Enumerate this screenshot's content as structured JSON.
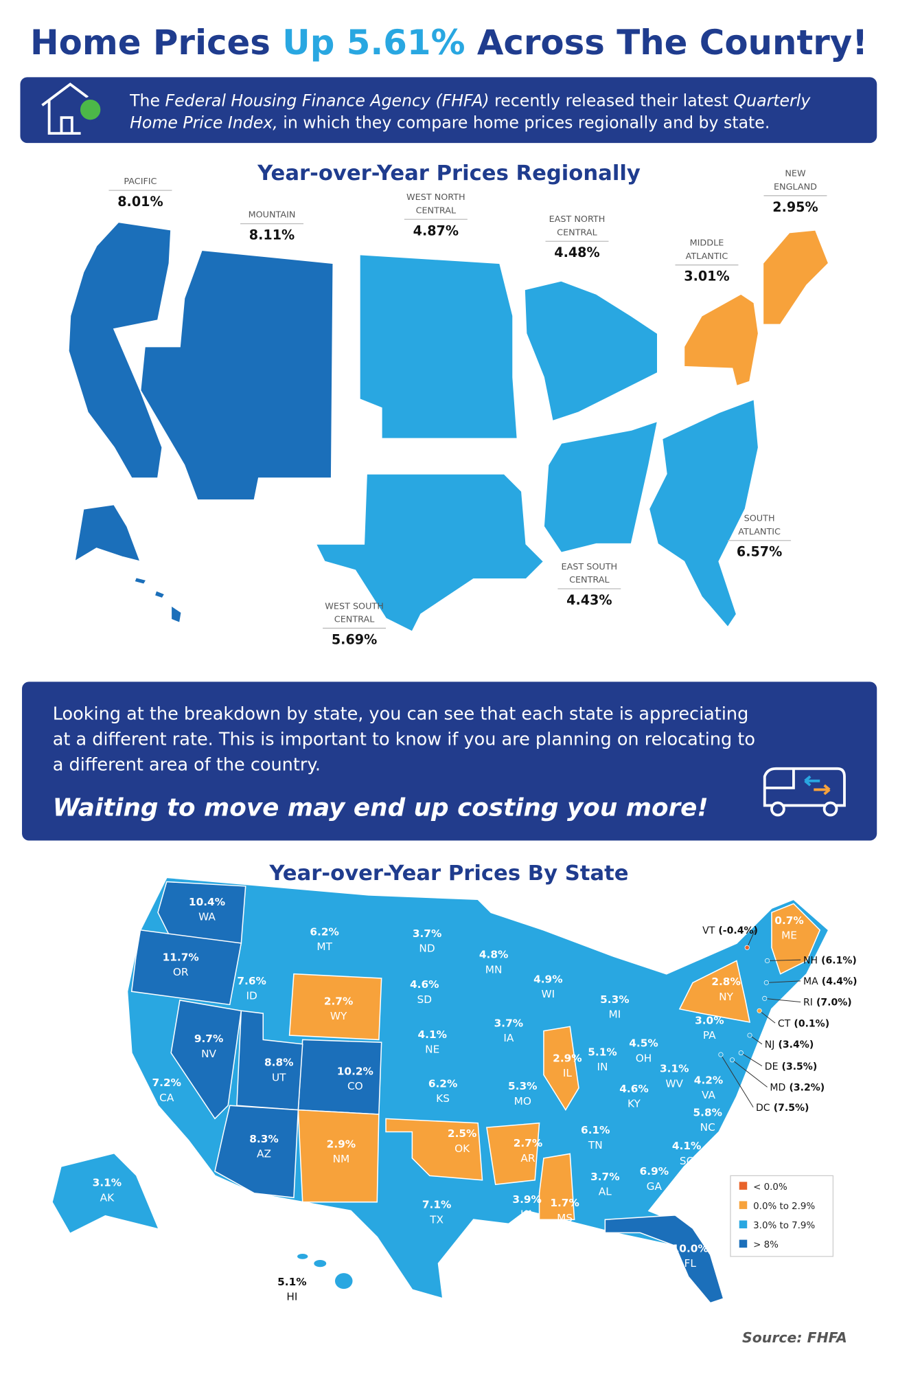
{
  "header": {
    "title": [
      {
        "text": "Home Prices "
      },
      {
        "text": "Up 5.61%",
        "color": "#29a7e1"
      },
      {
        "text": " Across The Country!"
      }
    ],
    "color": "#1f3c8e"
  },
  "intro": {
    "lines": [
      [
        {
          "text": "The "
        },
        {
          "text": "Federal Housing Finance Agency (FHFA)",
          "italic": true
        },
        {
          "text": " recently released their latest "
        },
        {
          "text": "Quarterly",
          "italic": true
        }
      ],
      [
        {
          "text": "Home Price Index,",
          "italic": true
        },
        {
          "text": " in which they compare home prices regionally and by state."
        }
      ]
    ]
  },
  "regional": {
    "title": "Year-over-Year Prices Regionally",
    "regions": [
      {
        "name": [
          "PACIFIC"
        ],
        "value": "8.01%",
        "color": "#1b6fba"
      },
      {
        "name": [
          "MOUNTAIN"
        ],
        "value": "8.11%",
        "color": "#1b6fba"
      },
      {
        "name": [
          "WEST NORTH",
          "CENTRAL"
        ],
        "value": "4.87%",
        "color": "#29a7e1"
      },
      {
        "name": [
          "EAST NORTH",
          "CENTRAL"
        ],
        "value": "4.48%",
        "color": "#29a7e1"
      },
      {
        "name": [
          "NEW",
          "ENGLAND"
        ],
        "value": "2.95%",
        "color": "#f7a23b"
      },
      {
        "name": [
          "MIDDLE",
          "ATLANTIC"
        ],
        "value": "3.01%",
        "color": "#f7a23b"
      },
      {
        "name": [
          "SOUTH",
          "ATLANTIC"
        ],
        "value": "6.57%",
        "color": "#29a7e1"
      },
      {
        "name": [
          "EAST SOUTH",
          "CENTRAL"
        ],
        "value": "4.43%",
        "color": "#29a7e1"
      },
      {
        "name": [
          "WEST SOUTH",
          "CENTRAL"
        ],
        "value": "5.69%",
        "color": "#29a7e1"
      }
    ]
  },
  "move": {
    "lines": [
      "Looking at the breakdown by state, you can see that each state is appreciating",
      "at a different rate. This is important to know if you are planning on relocating to",
      "a different area of the country."
    ],
    "tagline": "Waiting to move may end up costing you more!"
  },
  "states": {
    "title": "Year-over-Year Prices By State",
    "items": [
      {
        "abbr": "WA",
        "value": "10.4%",
        "color": "#1b6fba"
      },
      {
        "abbr": "OR",
        "value": "11.7%",
        "color": "#1b6fba"
      },
      {
        "abbr": "ID",
        "value": "7.6%",
        "color": "#29a7e1"
      },
      {
        "abbr": "MT",
        "value": "6.2%",
        "color": "#29a7e1"
      },
      {
        "abbr": "WY",
        "value": "2.7%",
        "color": "#f7a23b"
      },
      {
        "abbr": "ND",
        "value": "3.7%",
        "color": "#29a7e1"
      },
      {
        "abbr": "SD",
        "value": "4.6%",
        "color": "#29a7e1"
      },
      {
        "abbr": "NE",
        "value": "4.1%",
        "color": "#29a7e1"
      },
      {
        "abbr": "CO",
        "value": "10.2%",
        "color": "#1b6fba"
      },
      {
        "abbr": "UT",
        "value": "8.8%",
        "color": "#1b6fba"
      },
      {
        "abbr": "NV",
        "value": "9.7%",
        "color": "#1b6fba"
      },
      {
        "abbr": "CA",
        "value": "7.2%",
        "color": "#29a7e1"
      },
      {
        "abbr": "AZ",
        "value": "8.3%",
        "color": "#1b6fba"
      },
      {
        "abbr": "NM",
        "value": "2.9%",
        "color": "#f7a23b"
      },
      {
        "abbr": "KS",
        "value": "6.2%",
        "color": "#29a7e1"
      },
      {
        "abbr": "OK",
        "value": "2.5%",
        "color": "#f7a23b"
      },
      {
        "abbr": "TX",
        "value": "7.1%",
        "color": "#29a7e1"
      },
      {
        "abbr": "AR",
        "value": "2.7%",
        "color": "#f7a23b"
      },
      {
        "abbr": "LA",
        "value": "3.9%",
        "color": "#29a7e1"
      },
      {
        "abbr": "MO",
        "value": "5.3%",
        "color": "#29a7e1"
      },
      {
        "abbr": "IA",
        "value": "3.7%",
        "color": "#29a7e1"
      },
      {
        "abbr": "MN",
        "value": "4.8%",
        "color": "#29a7e1"
      },
      {
        "abbr": "WI",
        "value": "4.9%",
        "color": "#29a7e1"
      },
      {
        "abbr": "MI",
        "value": "5.3%",
        "color": "#29a7e1"
      },
      {
        "abbr": "IL",
        "value": "2.9%",
        "color": "#f7a23b"
      },
      {
        "abbr": "IN",
        "value": "5.1%",
        "color": "#29a7e1"
      },
      {
        "abbr": "OH",
        "value": "4.5%",
        "color": "#29a7e1"
      },
      {
        "abbr": "KY",
        "value": "4.6%",
        "color": "#29a7e1"
      },
      {
        "abbr": "TN",
        "value": "6.1%",
        "color": "#29a7e1"
      },
      {
        "abbr": "MS",
        "value": "1.7%",
        "color": "#f7a23b"
      },
      {
        "abbr": "AL",
        "value": "3.7%",
        "color": "#29a7e1"
      },
      {
        "abbr": "GA",
        "value": "6.9%",
        "color": "#29a7e1"
      },
      {
        "abbr": "SC",
        "value": "4.1%",
        "color": "#29a7e1"
      },
      {
        "abbr": "NC",
        "value": "5.8%",
        "color": "#29a7e1"
      },
      {
        "abbr": "VA",
        "value": "4.2%",
        "color": "#29a7e1"
      },
      {
        "abbr": "WV",
        "value": "3.1%",
        "color": "#29a7e1"
      },
      {
        "abbr": "PA",
        "value": "3.0%",
        "color": "#29a7e1"
      },
      {
        "abbr": "NY",
        "value": "2.8%",
        "color": "#f7a23b"
      },
      {
        "abbr": "ME",
        "value": "0.7%",
        "color": "#f7a23b"
      },
      {
        "abbr": "AK",
        "value": "3.1%",
        "color": "#29a7e1"
      },
      {
        "abbr": "HI",
        "value": "5.1%",
        "color": "#29a7e1"
      },
      {
        "abbr": "FL",
        "value": "10.0%",
        "color": "#1b6fba"
      }
    ],
    "callouts": [
      {
        "abbr": "VT",
        "value": "(-0.4%)",
        "color": "#e8632a"
      },
      {
        "abbr": "NH",
        "value": "(6.1%)",
        "color": "#29a7e1"
      },
      {
        "abbr": "MA",
        "value": "(4.4%)",
        "color": "#29a7e1"
      },
      {
        "abbr": "RI",
        "value": "(7.0%)",
        "color": "#29a7e1"
      },
      {
        "abbr": "CT",
        "value": "(0.1%)",
        "color": "#f7a23b"
      },
      {
        "abbr": "NJ",
        "value": "(3.4%)",
        "color": "#29a7e1"
      },
      {
        "abbr": "DE",
        "value": "(3.5%)",
        "color": "#29a7e1"
      },
      {
        "abbr": "MD",
        "value": "(3.2%)",
        "color": "#29a7e1"
      },
      {
        "abbr": "DC",
        "value": "(7.5%)",
        "color": "#29a7e1"
      }
    ],
    "legend": [
      {
        "label": "< 0.0%",
        "color": "#e8632a"
      },
      {
        "label": "0.0% to 2.9%",
        "color": "#f7a23b"
      },
      {
        "label": "3.0% to 7.9%",
        "color": "#29a7e1"
      },
      {
        "label": "> 8%",
        "color": "#1b6fba"
      }
    ]
  },
  "source": "Source: FHFA"
}
